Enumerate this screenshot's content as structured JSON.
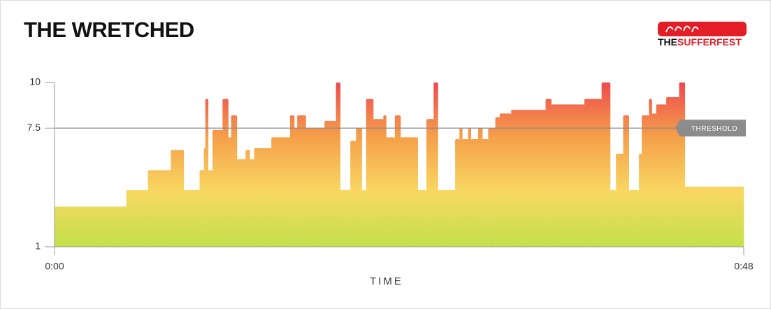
{
  "chart_data": {
    "type": "step-area",
    "title": "THE WRETCHED",
    "logo": {
      "prefix": "THE",
      "name": "SUFFERFEST"
    },
    "x_label": "TIME",
    "xlim": [
      0,
      48
    ],
    "xticks": [
      {
        "value": 0,
        "label": "0:00"
      },
      {
        "value": 48,
        "label": "0:48"
      }
    ],
    "ylim": [
      1,
      10
    ],
    "yticks": [
      1,
      7.5,
      10
    ],
    "threshold": 7.5,
    "threshold_label": "THRESHOLD",
    "gradient": [
      "#c3e14a",
      "#f8d862",
      "#f5a04a",
      "#ee4a4f"
    ],
    "x": [
      0,
      5.0,
      6.5,
      8.1,
      9.0,
      10.1,
      10.4,
      10.5,
      10.7,
      11.0,
      11.7,
      12.1,
      12.3,
      12.7,
      13.3,
      13.6,
      13.9,
      15.1,
      16.4,
      16.7,
      16.9,
      17.5,
      18.8,
      19.6,
      19.9,
      20.6,
      21.0,
      21.4,
      21.7,
      22.2,
      22.9,
      23.1,
      23.7,
      24.1,
      25.3,
      25.9,
      26.4,
      26.7,
      27.9,
      28.2,
      28.4,
      28.8,
      29.0,
      29.5,
      29.8,
      30.2,
      30.7,
      31.0,
      31.8,
      34.2,
      34.6,
      36.9,
      38.1,
      38.7,
      39.1,
      39.6,
      40.0,
      40.7,
      40.9,
      41.4,
      41.6,
      41.9,
      42.6,
      43.5,
      43.9
    ],
    "values": [
      3.2,
      4.1,
      5.2,
      6.3,
      4.1,
      5.2,
      6.4,
      9.1,
      5.2,
      7.4,
      9.1,
      7.0,
      8.2,
      5.8,
      6.3,
      5.8,
      6.4,
      7.0,
      8.2,
      7.5,
      8.2,
      7.5,
      7.9,
      10,
      4.1,
      6.8,
      7.5,
      4.1,
      9.1,
      8.0,
      8.2,
      7.0,
      8.2,
      7.0,
      4.1,
      8.0,
      10,
      4.1,
      6.9,
      7.5,
      6.9,
      7.5,
      6.9,
      7.5,
      6.9,
      7.5,
      8.1,
      8.3,
      8.5,
      9.1,
      8.8,
      9.1,
      10,
      4.1,
      6.1,
      8.2,
      4.1,
      6.1,
      8.2,
      9.1,
      8.3,
      8.8,
      9.2,
      10,
      4.3
    ]
  }
}
